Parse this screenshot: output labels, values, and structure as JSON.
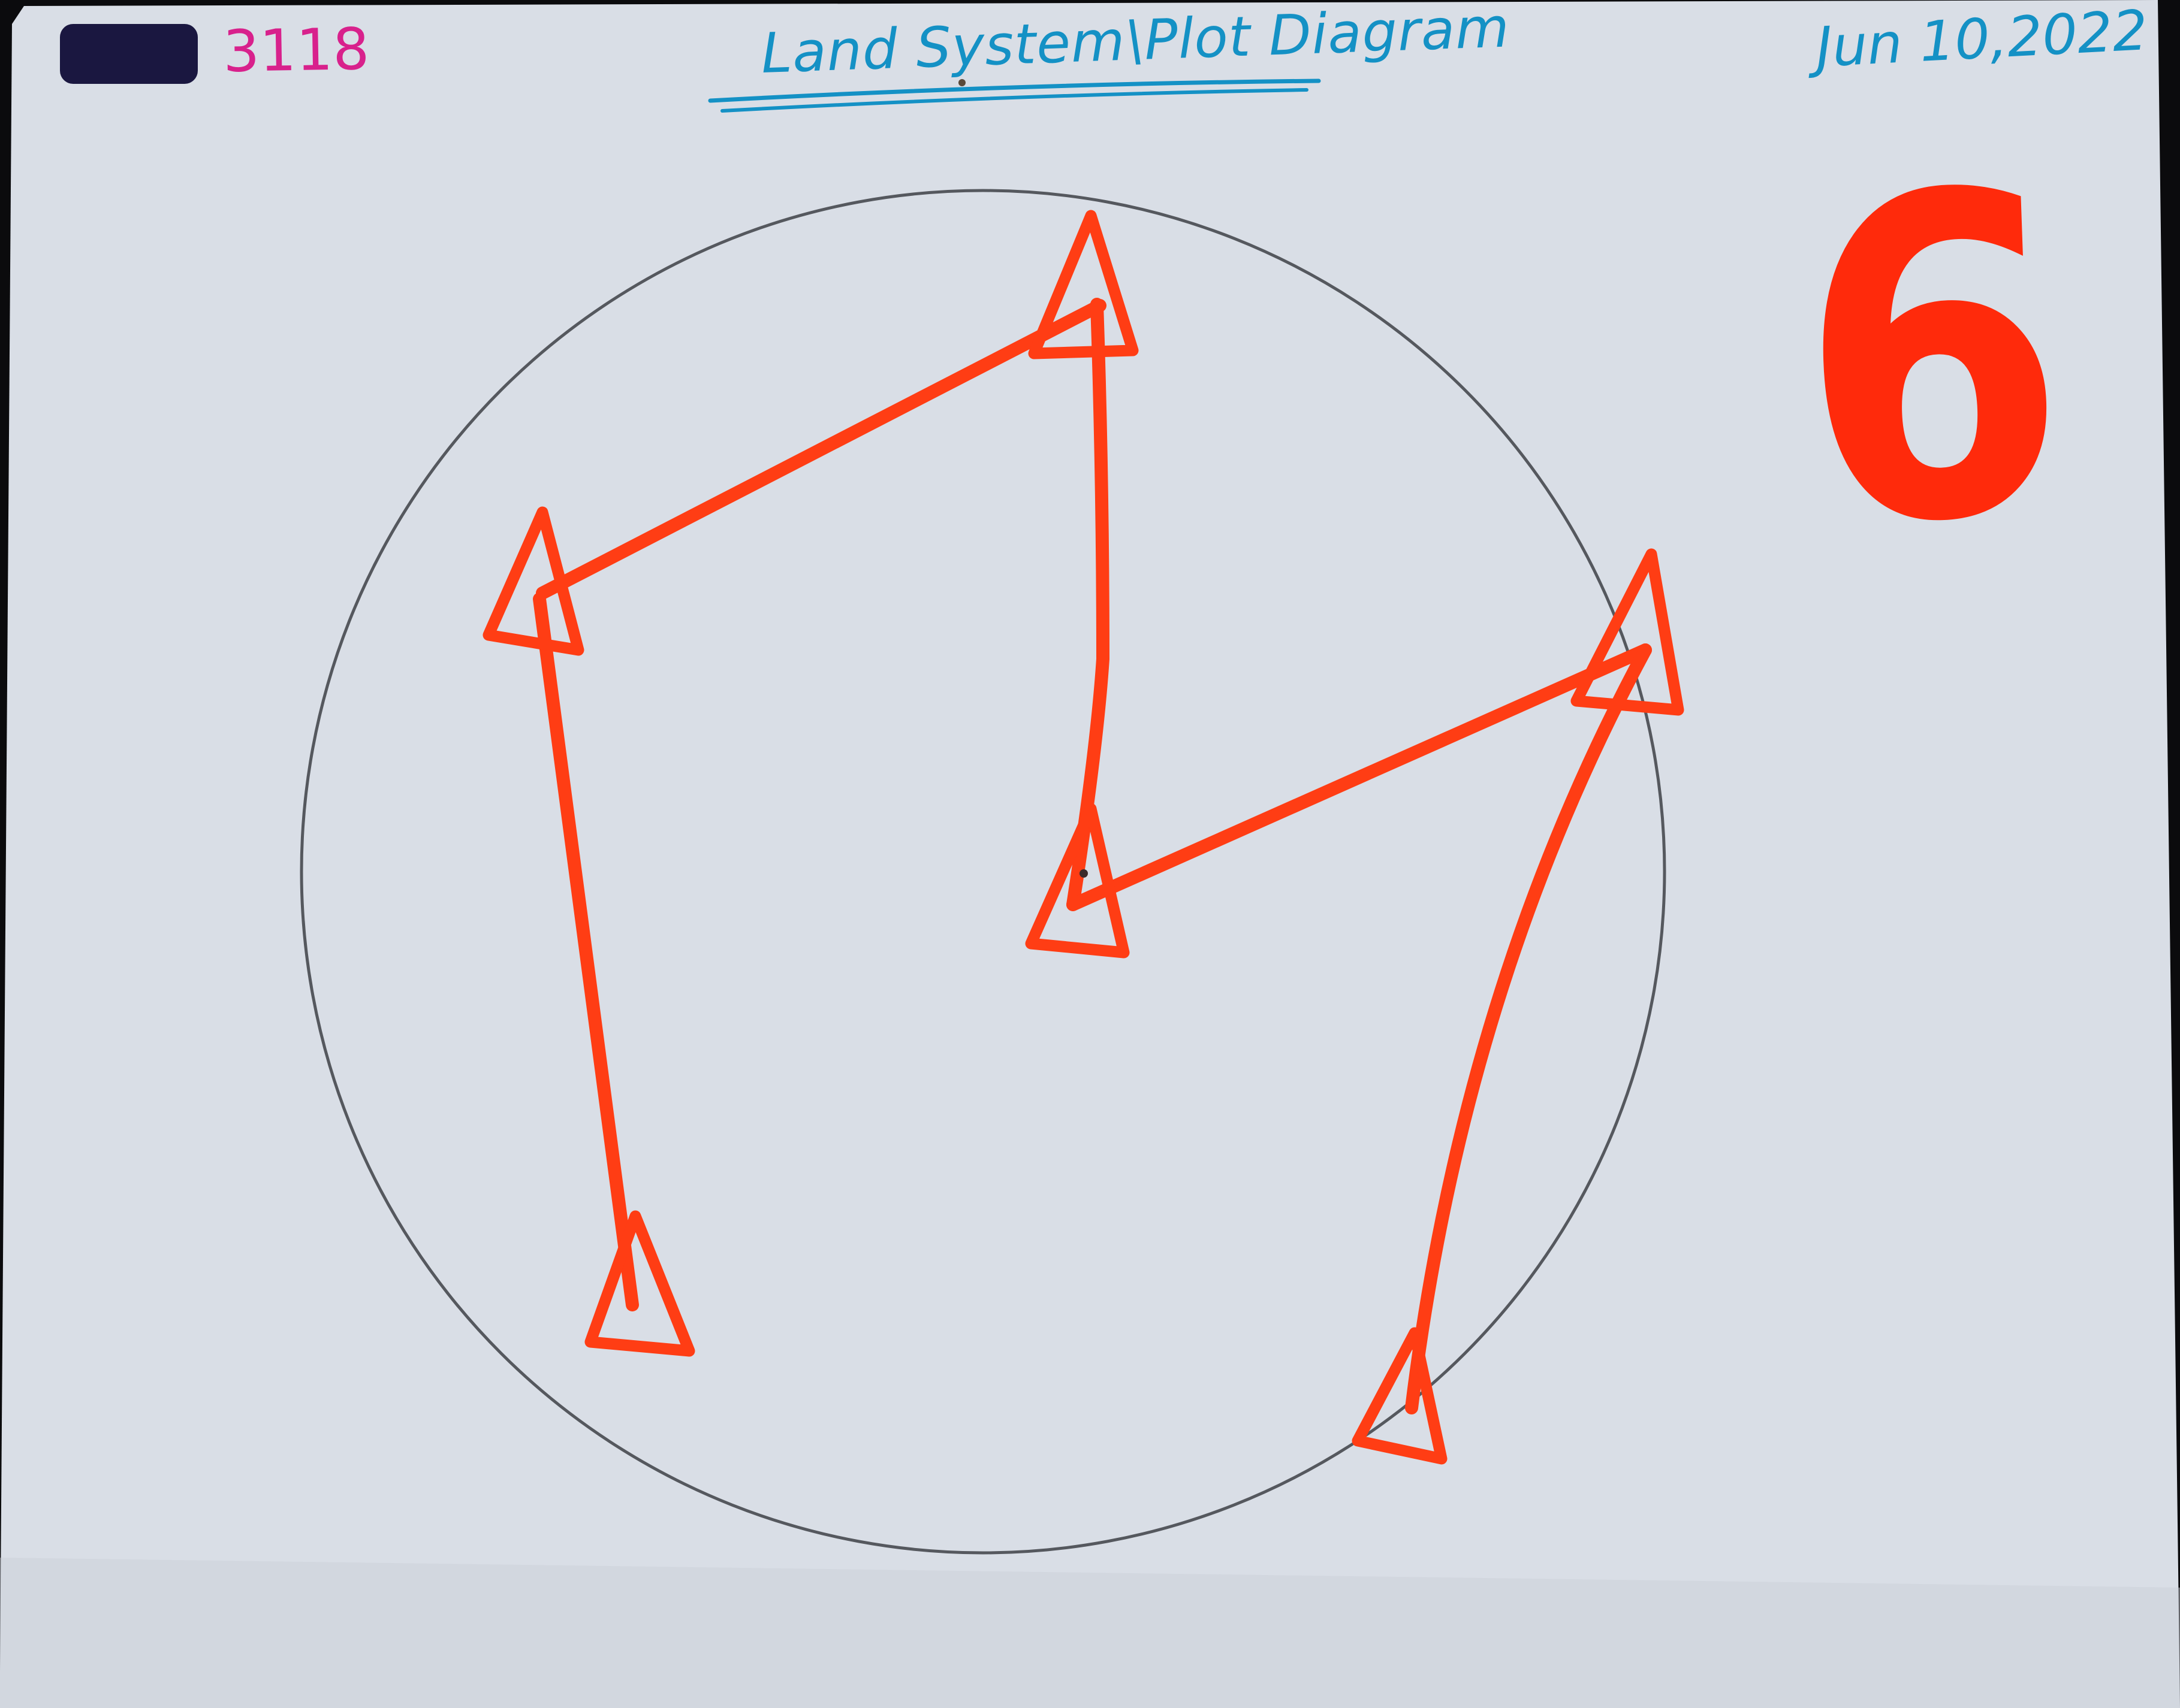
{
  "header": {
    "redaction_color": "#1a1740",
    "doc_number": "3118",
    "doc_number_color": "#d8218c",
    "title": "Land System\\Plot Diagram",
    "title_color": "#1491c5",
    "date": "Jun 10,2022"
  },
  "plot_number": "6",
  "colors": {
    "paper": "#d9dee6",
    "circle_outline": "#55585e",
    "marker": "#ff3d14",
    "background": "#0b0b0d"
  },
  "diagram": {
    "boundary_shape": "circle",
    "marker_shape": "triangle",
    "marker_count": 6,
    "connector_count": 5
  }
}
